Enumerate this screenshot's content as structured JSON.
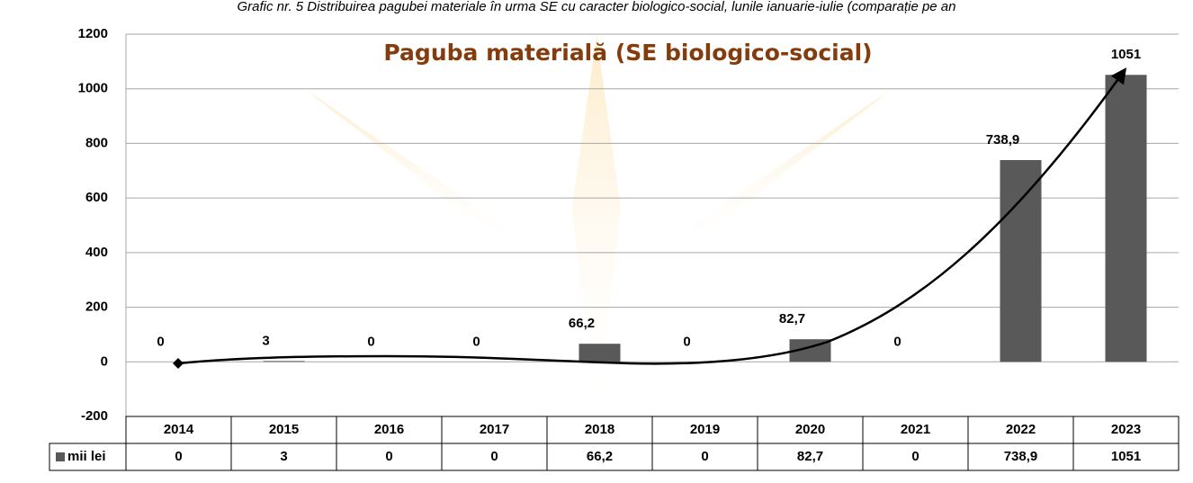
{
  "caption": "Grafic nr. 5 Distribuirea pagubei materiale în urma SE cu caracter biologico-social, lunile ianuarie-iulie (comparație pe an",
  "chart_data": {
    "type": "bar",
    "title": "Paguba materială (SE biologico-social)",
    "categories": [
      "2014",
      "2015",
      "2016",
      "2017",
      "2018",
      "2019",
      "2020",
      "2021",
      "2022",
      "2023"
    ],
    "series": [
      {
        "name": "mii lei",
        "color": "#595959",
        "values": [
          0,
          3,
          0,
          0,
          66.2,
          0,
          82.7,
          0,
          738.9,
          1051
        ],
        "value_labels": [
          "0",
          "3",
          "0",
          "0",
          "66,2",
          "0",
          "82,7",
          "0",
          "738,9",
          "1051"
        ]
      }
    ],
    "ylim": [
      -200,
      1200
    ],
    "yticks": [
      -200,
      0,
      200,
      400,
      600,
      800,
      1000,
      1200
    ],
    "grid": true,
    "data_table": true
  }
}
